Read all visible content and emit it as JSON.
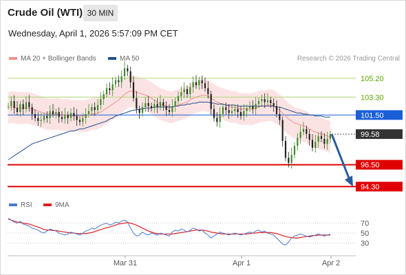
{
  "header": {
    "instrument": "Crude Oil (WTI)",
    "timeframe": "30 MIN",
    "datetime": "Wednesday, April 1, 2026 5:57:09 PM CET"
  },
  "legend": {
    "items": [
      {
        "label": "MA 20 + Bollinger Bands",
        "color": "#f0908a"
      },
      {
        "label": "MA 50",
        "color": "#1f4e8c"
      }
    ],
    "credit": "Research © 2026 Trading Central"
  },
  "rsi_legend": {
    "items": [
      {
        "label": "RSI",
        "color": "#4a78d0"
      },
      {
        "label": "9MA",
        "color": "#e02020"
      }
    ]
  },
  "chart_data": {
    "type": "candlestick",
    "title": "Crude Oil (WTI)",
    "timeframe": "30 MIN",
    "x_ticks": [
      "Mar 31",
      "Apr 1",
      "Apr 2"
    ],
    "y_range": [
      93.5,
      106.5
    ],
    "levels": [
      {
        "value": 105.2,
        "label": "105.20",
        "kind": "resistance",
        "color": "#5aa800"
      },
      {
        "value": 103.3,
        "label": "103.30",
        "kind": "resistance",
        "color": "#5aa800"
      },
      {
        "value": 101.5,
        "label": "101.50",
        "kind": "pivot",
        "color": "#1a5fd8"
      },
      {
        "value": 99.58,
        "label": "99.58",
        "kind": "last_price",
        "color": "#333333"
      },
      {
        "value": 96.5,
        "label": "96.50",
        "kind": "support",
        "color": "#e00000"
      },
      {
        "value": 94.3,
        "label": "94.30",
        "kind": "support",
        "color": "#e00000"
      }
    ],
    "forecast": {
      "from": 99.58,
      "to": 94.3,
      "color": "#2a5aa0"
    },
    "closes": [
      102.4,
      102.9,
      102.2,
      101.8,
      102.6,
      102.1,
      102.8,
      102.3,
      101.6,
      101.2,
      100.9,
      101.0,
      101.4,
      101.2,
      101.9,
      101.6,
      101.8,
      101.3,
      101.1,
      101.5,
      101.2,
      101.7,
      101.4,
      101.0,
      100.8,
      101.2,
      101.6,
      101.9,
      102.3,
      102.0,
      102.5,
      103.1,
      103.6,
      104.2,
      104.0,
      104.6,
      105.0,
      104.8,
      105.4,
      106.2,
      105.9,
      104.8,
      103.2,
      102.1,
      101.7,
      102.3,
      102.7,
      102.4,
      102.2,
      102.6,
      102.3,
      102.8,
      102.4,
      102.0,
      101.8,
      102.4,
      102.9,
      103.4,
      103.8,
      104.1,
      103.6,
      104.3,
      104.8,
      104.5,
      105.0,
      104.7,
      104.2,
      103.6,
      102.1,
      101.2,
      100.8,
      101.6,
      102.3,
      102.0,
      101.7,
      101.9,
      102.1,
      101.8,
      101.4,
      101.9,
      102.2,
      102.4,
      102.1,
      102.6,
      102.9,
      103.1,
      102.8,
      103.0,
      102.7,
      102.4,
      101.6,
      101.0,
      98.9,
      97.2,
      96.7,
      97.5,
      98.4,
      99.2,
      99.8,
      100.1,
      99.6,
      99.0,
      98.2,
      98.8,
      99.4,
      99.1,
      98.6,
      99.1,
      99.58
    ],
    "ma20": [
      102.2,
      102.3,
      102.3,
      102.2,
      102.2,
      102.2,
      102.2,
      102.2,
      102.1,
      102.0,
      101.9,
      101.8,
      101.7,
      101.6,
      101.6,
      101.6,
      101.6,
      101.6,
      101.5,
      101.5,
      101.5,
      101.4,
      101.4,
      101.4,
      101.4,
      101.4,
      101.4,
      101.5,
      101.6,
      101.6,
      101.7,
      101.8,
      102.0,
      102.2,
      102.4,
      102.6,
      102.8,
      103.0,
      103.3,
      103.6,
      103.8,
      103.9,
      103.9,
      103.8,
      103.7,
      103.6,
      103.5,
      103.4,
      103.2,
      103.0,
      102.8,
      102.6,
      102.5,
      102.4,
      102.3,
      102.3,
      102.4,
      102.5,
      102.6,
      102.7,
      102.8,
      103.0,
      103.2,
      103.3,
      103.4,
      103.5,
      103.5,
      103.4,
      103.2,
      103.0,
      102.8,
      102.7,
      102.6,
      102.5,
      102.4,
      102.3,
      102.3,
      102.2,
      102.1,
      102.1,
      102.1,
      102.1,
      102.1,
      102.2,
      102.3,
      102.4,
      102.4,
      102.5,
      102.5,
      102.4,
      102.2,
      102.0,
      101.7,
      101.4,
      101.1,
      100.9,
      100.7,
      100.6,
      100.5,
      100.4,
      100.3,
      100.1,
      99.9,
      99.8,
      99.7,
      99.6,
      99.5,
      99.4,
      99.3
    ],
    "ma50": [
      97.0,
      97.2,
      97.4,
      97.6,
      97.8,
      98.0,
      98.2,
      98.4,
      98.6,
      98.7,
      98.8,
      98.9,
      99.0,
      99.1,
      99.2,
      99.3,
      99.4,
      99.5,
      99.6,
      99.7,
      99.8,
      99.9,
      99.9,
      100.0,
      100.1,
      100.1,
      100.2,
      100.3,
      100.4,
      100.5,
      100.6,
      100.7,
      100.8,
      100.9,
      101.1,
      101.2,
      101.4,
      101.5,
      101.6,
      101.7,
      101.8,
      101.9,
      102.0,
      102.0,
      102.1,
      102.1,
      102.2,
      102.2,
      102.2,
      102.3,
      102.3,
      102.3,
      102.3,
      102.3,
      102.3,
      102.3,
      102.4,
      102.4,
      102.5,
      102.5,
      102.6,
      102.6,
      102.7,
      102.7,
      102.8,
      102.8,
      102.8,
      102.8,
      102.7,
      102.7,
      102.6,
      102.6,
      102.6,
      102.5,
      102.5,
      102.5,
      102.5,
      102.4,
      102.4,
      102.4,
      102.4,
      102.4,
      102.4,
      102.4,
      102.4,
      102.4,
      102.4,
      102.4,
      102.4,
      102.4,
      102.3,
      102.3,
      102.2,
      102.1,
      102.0,
      101.9,
      101.8,
      101.7,
      101.7,
      101.6,
      101.6,
      101.5,
      101.5,
      101.4,
      101.4,
      101.4,
      101.3,
      101.3,
      101.3
    ],
    "rsi": {
      "levels": [
        70,
        50,
        30
      ],
      "ylim": [
        10,
        90
      ],
      "rsi_values": [
        80,
        76,
        72,
        70,
        74,
        68,
        66,
        64,
        60,
        58,
        56,
        52,
        50,
        54,
        58,
        56,
        54,
        50,
        48,
        46,
        48,
        52,
        50,
        48,
        46,
        50,
        54,
        56,
        60,
        58,
        62,
        66,
        68,
        70,
        66,
        68,
        72,
        70,
        74,
        76,
        72,
        60,
        50,
        44,
        46,
        52,
        48,
        46,
        50,
        48,
        46,
        50,
        48,
        46,
        44,
        52,
        56,
        54,
        58,
        56,
        52,
        56,
        60,
        58,
        54,
        56,
        50,
        46,
        40,
        44,
        48,
        52,
        50,
        48,
        46,
        48,
        50,
        48,
        46,
        48,
        50,
        52,
        50,
        54,
        56,
        52,
        54,
        50,
        48,
        46,
        40,
        34,
        28,
        26,
        32,
        40,
        44,
        46,
        48,
        46,
        44,
        42,
        44,
        46,
        48,
        46,
        44,
        46,
        48
      ],
      "ma9_values": [
        78,
        76,
        74,
        72,
        71,
        70,
        69,
        68,
        66,
        64,
        62,
        60,
        57,
        56,
        56,
        55,
        55,
        54,
        53,
        52,
        51,
        50,
        50,
        49,
        49,
        49,
        49,
        50,
        51,
        53,
        55,
        57,
        59,
        61,
        62,
        64,
        66,
        68,
        69,
        70,
        71,
        70,
        68,
        66,
        63,
        60,
        57,
        54,
        52,
        50,
        49,
        48,
        48,
        48,
        48,
        48,
        49,
        50,
        51,
        52,
        53,
        54,
        55,
        56,
        56,
        56,
        55,
        54,
        52,
        51,
        50,
        49,
        48,
        48,
        48,
        48,
        48,
        48,
        48,
        48,
        48,
        49,
        50,
        50,
        51,
        51,
        51,
        51,
        51,
        50,
        49,
        47,
        45,
        43,
        42,
        41,
        40,
        40,
        41,
        42,
        43,
        44,
        45,
        45,
        46,
        46,
        46,
        46,
        46
      ]
    }
  }
}
